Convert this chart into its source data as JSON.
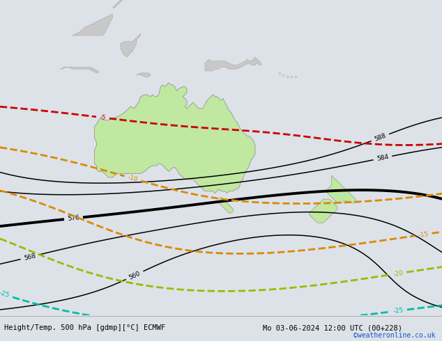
{
  "title_left": "Height/Temp. 500 hPa [gdmp][°C] ECMWF",
  "title_right": "Mo 03-06-2024 12:00 UTC (00+228)",
  "credit": "©weatheronline.co.uk",
  "bg_color": "#dce2e8",
  "land_gray": "#c8c8c8",
  "aus_green": "#c0e8a0",
  "nz_green": "#c0e8a0",
  "ocean_color": "#dce2e8",
  "height_color": "#000000",
  "temp_colors": {
    "-5": "#cc0000",
    "-10": "#dd8800",
    "-15": "#dd8800",
    "-20": "#99bb00",
    "-25": "#00bbaa",
    "-30": "#00ccdd"
  },
  "figsize": [
    6.34,
    4.9
  ],
  "dpi": 100,
  "map_lon_min": 90,
  "map_lon_max": 200,
  "map_lat_min": -70,
  "map_lat_max": 10
}
